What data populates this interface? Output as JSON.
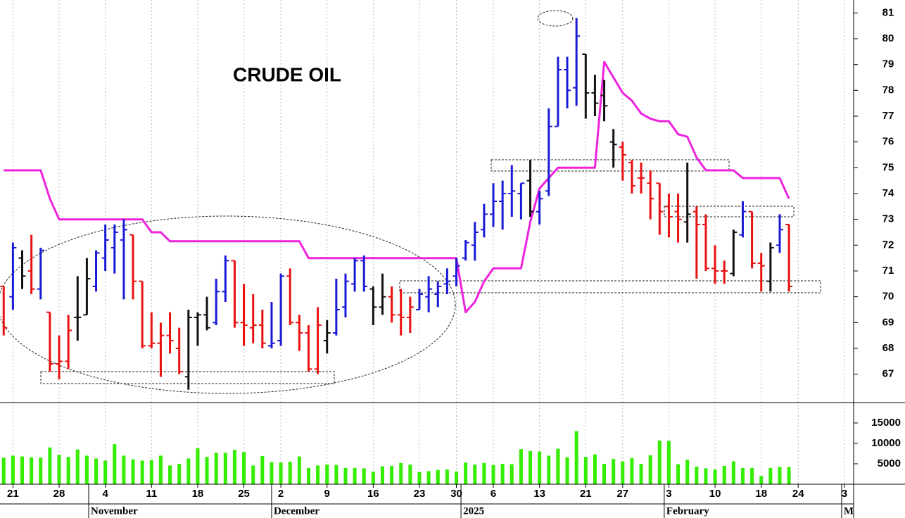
{
  "chart_data": {
    "type": "ohlc",
    "title": "CRUDE OIL",
    "open": [
      70.4,
      70.0,
      71.5,
      71.0,
      70.3,
      69.4,
      67.4,
      67.5,
      69.2,
      69.3,
      70.4,
      71.5,
      71.9,
      72.2,
      72.4,
      70.6,
      68.1,
      68.2,
      68.5,
      68.0,
      66.9,
      69.2,
      69.3,
      69.0,
      70.2,
      71.4,
      69.0,
      68.8,
      68.9,
      68.1,
      68.3,
      70.8,
      69.0,
      68.6,
      67.2,
      68.3,
      68.6,
      69.6,
      70.5,
      71.4,
      70.3,
      69.6,
      70.0,
      69.3,
      69.2,
      69.5,
      70.0,
      70.1,
      70.5,
      70.8,
      71.5,
      72.0,
      72.6,
      73.2,
      73.7,
      74.0,
      74.0,
      74.5,
      73.3,
      74.1,
      76.6,
      78.8,
      78.1,
      79.4,
      77.9,
      77.8,
      76.0,
      75.8,
      75.2,
      74.6,
      74.4,
      74.4,
      73.5,
      73.3,
      72.9,
      73.3,
      72.8,
      71.1,
      71.0,
      70.9,
      72.4,
      73.3,
      71.3,
      70.6,
      72.0,
      72.8
    ],
    "high": [
      70.4,
      72.1,
      71.8,
      72.4,
      71.9,
      69.4,
      68.5,
      69.3,
      70.8,
      71.5,
      71.8,
      72.8,
      72.8,
      73.0,
      72.4,
      70.6,
      69.4,
      69.0,
      69.4,
      68.8,
      69.5,
      69.4,
      70.0,
      70.7,
      71.6,
      71.4,
      70.5,
      70.1,
      69.5,
      69.8,
      70.9,
      71.1,
      69.3,
      68.9,
      69.6,
      69.1,
      70.7,
      70.9,
      71.5,
      71.6,
      70.4,
      70.9,
      70.4,
      70.3,
      70.0,
      70.3,
      70.8,
      70.6,
      71.1,
      71.5,
      72.2,
      72.9,
      73.6,
      74.4,
      74.5,
      75.1,
      74.4,
      75.3,
      74.1,
      77.3,
      79.3,
      79.3,
      80.8,
      79.4,
      78.6,
      78.4,
      76.5,
      76.0,
      75.3,
      75.2,
      74.9,
      74.4,
      74.0,
      74.0,
      75.2,
      73.5,
      73.2,
      72.0,
      71.4,
      72.6,
      73.7,
      73.3,
      71.7,
      72.1,
      73.2,
      72.8
    ],
    "low": [
      68.5,
      69.5,
      70.3,
      70.1,
      69.9,
      67.1,
      66.8,
      67.2,
      68.3,
      69.3,
      70.2,
      71.0,
      70.9,
      69.9,
      69.9,
      68.0,
      68.0,
      66.9,
      67.8,
      67.0,
      66.4,
      68.1,
      68.7,
      68.9,
      69.8,
      68.8,
      68.1,
      68.2,
      68.0,
      68.0,
      68.1,
      68.9,
      67.9,
      67.1,
      67.0,
      67.8,
      68.5,
      69.2,
      70.2,
      70.2,
      68.9,
      69.3,
      69.0,
      68.5,
      68.6,
      69.5,
      69.4,
      69.6,
      70.1,
      70.4,
      71.4,
      71.4,
      72.3,
      72.7,
      72.6,
      73.1,
      73.0,
      73.1,
      72.8,
      73.9,
      76.6,
      77.3,
      77.4,
      76.9,
      77.0,
      76.8,
      75.0,
      74.5,
      74.0,
      74.0,
      73.0,
      72.4,
      72.3,
      72.1,
      72.1,
      70.7,
      71.0,
      70.5,
      70.5,
      70.8,
      72.3,
      71.1,
      70.2,
      70.2,
      71.7,
      70.2
    ],
    "close": [
      68.8,
      71.9,
      70.8,
      70.3,
      71.8,
      67.4,
      67.5,
      68.7,
      69.2,
      70.7,
      71.7,
      72.2,
      72.5,
      72.6,
      70.6,
      68.1,
      68.2,
      68.5,
      68.3,
      67.1,
      69.2,
      69.3,
      68.8,
      70.2,
      71.4,
      69.0,
      68.9,
      68.9,
      68.2,
      68.2,
      70.8,
      69.0,
      68.6,
      67.2,
      68.9,
      68.6,
      69.5,
      70.6,
      71.4,
      70.4,
      69.6,
      70.0,
      69.3,
      69.2,
      69.6,
      70.1,
      70.3,
      70.4,
      70.6,
      71.2,
      72.1,
      72.5,
      73.2,
      73.7,
      74.0,
      74.1,
      74.4,
      73.3,
      73.8,
      76.6,
      78.8,
      78.0,
      80.1,
      77.9,
      77.5,
      77.4,
      75.9,
      75.5,
      74.3,
      74.6,
      73.8,
      73.3,
      73.1,
      73.0,
      73.2,
      72.8,
      71.1,
      71.0,
      71.0,
      72.5,
      73.3,
      71.3,
      71.2,
      71.9,
      72.6,
      70.4
    ],
    "bar_colors": [
      "#e81010",
      "#1a1ad6",
      "#111111",
      "#e81010",
      "#1a1ad6",
      "#e81010",
      "#e81010",
      "#e81010",
      "#111111",
      "#111111",
      "#1a1ad6",
      "#1a1ad6",
      "#1a1ad6",
      "#1a1ad6",
      "#e81010",
      "#e81010",
      "#e81010",
      "#e81010",
      "#e81010",
      "#e81010",
      "#111111",
      "#111111",
      "#111111",
      "#1a1ad6",
      "#1a1ad6",
      "#e81010",
      "#e81010",
      "#e81010",
      "#e81010",
      "#1a1ad6",
      "#1a1ad6",
      "#e81010",
      "#e81010",
      "#e81010",
      "#e81010",
      "#111111",
      "#1a1ad6",
      "#1a1ad6",
      "#1a1ad6",
      "#1a1ad6",
      "#111111",
      "#111111",
      "#e81010",
      "#e81010",
      "#e81010",
      "#1a1ad6",
      "#1a1ad6",
      "#1a1ad6",
      "#1a1ad6",
      "#1a1ad6",
      "#1a1ad6",
      "#1a1ad6",
      "#1a1ad6",
      "#1a1ad6",
      "#1a1ad6",
      "#1a1ad6",
      "#1a1ad6",
      "#111111",
      "#1a1ad6",
      "#1a1ad6",
      "#1a1ad6",
      "#1a1ad6",
      "#1a1ad6",
      "#111111",
      "#111111",
      "#111111",
      "#111111",
      "#e81010",
      "#e81010",
      "#e81010",
      "#e81010",
      "#e81010",
      "#e81010",
      "#e81010",
      "#111111",
      "#e81010",
      "#e81010",
      "#e81010",
      "#e81010",
      "#111111",
      "#1a1ad6",
      "#e81010",
      "#e81010",
      "#111111",
      "#1a1ad6",
      "#e81010"
    ],
    "stop_line": {
      "color": "#ee22dd",
      "values": [
        74.9,
        74.9,
        74.9,
        74.9,
        74.9,
        73.8,
        73.0,
        73.0,
        73.0,
        73.0,
        73.0,
        73.0,
        73.0,
        73.0,
        73.0,
        73.0,
        72.5,
        72.5,
        72.15,
        72.15,
        72.15,
        72.15,
        72.15,
        72.15,
        72.15,
        72.15,
        72.15,
        72.15,
        72.15,
        72.15,
        72.15,
        72.15,
        72.15,
        71.5,
        71.5,
        71.5,
        71.5,
        71.5,
        71.5,
        71.5,
        71.5,
        71.5,
        71.5,
        71.5,
        71.5,
        71.5,
        71.5,
        71.5,
        71.5,
        71.5,
        69.4,
        69.8,
        70.6,
        71.1,
        71.1,
        71.1,
        71.1,
        72.9,
        74.2,
        74.6,
        75.0,
        75.0,
        75.0,
        75.0,
        75.0,
        79.1,
        78.5,
        77.9,
        77.6,
        77.1,
        76.9,
        76.8,
        76.8,
        76.3,
        76.2,
        75.4,
        74.9,
        74.9,
        74.9,
        74.9,
        74.6,
        74.6,
        74.6,
        74.6,
        74.6,
        73.8
      ]
    },
    "ylim": [
      65.9,
      81.5
    ],
    "yticks": [
      67,
      68,
      69,
      70,
      71,
      72,
      73,
      74,
      75,
      76,
      77,
      78,
      79,
      80,
      81
    ],
    "xlim": [
      -0.4,
      92
    ],
    "xticks": [
      {
        "value": 1,
        "label": "21"
      },
      {
        "value": 6,
        "label": "28"
      },
      {
        "value": 11,
        "label": "4"
      },
      {
        "value": 16,
        "label": "11"
      },
      {
        "value": 21,
        "label": "18"
      },
      {
        "value": 26,
        "label": "25"
      },
      {
        "value": 30,
        "label": "2"
      },
      {
        "value": 35,
        "label": "9"
      },
      {
        "value": 40,
        "label": "16"
      },
      {
        "value": 45,
        "label": "23"
      },
      {
        "value": 49,
        "label": "30"
      },
      {
        "value": 53,
        "label": "6"
      },
      {
        "value": 58,
        "label": "13"
      },
      {
        "value": 63,
        "label": "21"
      },
      {
        "value": 67,
        "label": "27"
      },
      {
        "value": 72,
        "label": "3"
      },
      {
        "value": 77,
        "label": "10"
      },
      {
        "value": 82,
        "label": "18"
      },
      {
        "value": 86,
        "label": "24"
      },
      {
        "value": 91,
        "label": "3"
      }
    ],
    "month_labels": [
      {
        "value": 9.2,
        "label": "November"
      },
      {
        "value": 29.0,
        "label": "December"
      },
      {
        "value": 49.5,
        "label": "2025"
      },
      {
        "value": 71.5,
        "label": "February"
      },
      {
        "value": 90.7,
        "label": "M"
      }
    ],
    "volume": {
      "type": "bar",
      "color": "#33ee00",
      "values": [
        6500,
        7000,
        6800,
        6600,
        6500,
        9000,
        7200,
        6700,
        8500,
        7000,
        6300,
        5800,
        9800,
        7000,
        6100,
        5800,
        5900,
        7000,
        4600,
        5000,
        6300,
        8800,
        6700,
        7700,
        7700,
        8400,
        7900,
        4600,
        6900,
        5400,
        5300,
        5500,
        6800,
        4000,
        4600,
        4800,
        4700,
        4000,
        4000,
        3900,
        3100,
        4400,
        4500,
        5200,
        4800,
        3000,
        3200,
        3500,
        3600,
        3100,
        5300,
        4800,
        5200,
        4700,
        5000,
        4900,
        8600,
        8100,
        8000,
        7000,
        8700,
        6600,
        13000,
        6700,
        7300,
        5000,
        6200,
        5600,
        6400,
        5000,
        7100,
        10700,
        10600,
        4900,
        6000,
        4300,
        3900,
        3600,
        4500,
        5600,
        4000,
        4000,
        2000,
        4000,
        4200,
        4200
      ],
      "ylim": [
        0,
        20000
      ],
      "yticks": [
        5000,
        10000,
        15000
      ]
    }
  }
}
